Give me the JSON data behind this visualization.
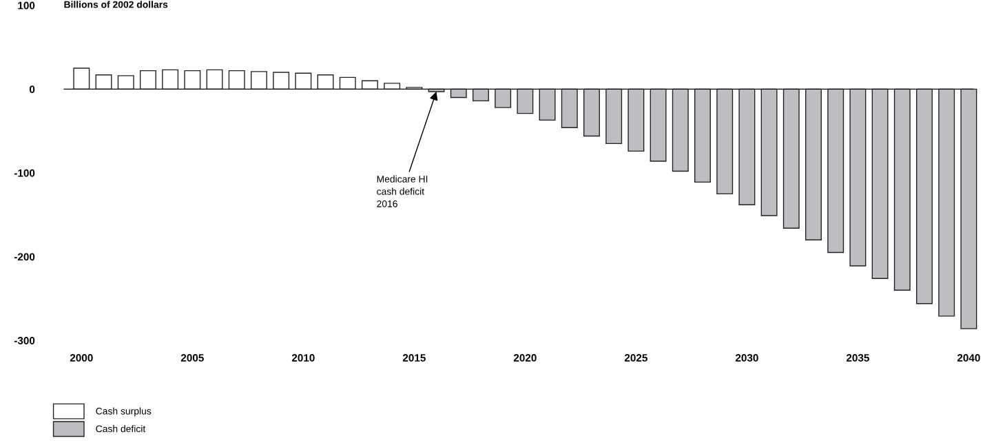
{
  "chart_data": {
    "type": "bar",
    "ylabel": "Billions of 2002 dollars",
    "x": [
      2000,
      2001,
      2002,
      2003,
      2004,
      2005,
      2006,
      2007,
      2008,
      2009,
      2010,
      2011,
      2012,
      2013,
      2014,
      2015,
      2016,
      2017,
      2018,
      2019,
      2020,
      2021,
      2022,
      2023,
      2024,
      2025,
      2026,
      2027,
      2028,
      2029,
      2030,
      2031,
      2032,
      2033,
      2034,
      2035,
      2036,
      2037,
      2038,
      2039,
      2040
    ],
    "series": [
      {
        "name": "Cash surplus",
        "color": "#ffffff",
        "values": [
          25,
          17,
          16,
          22,
          23,
          22,
          23,
          22,
          21,
          20,
          19,
          17,
          14,
          10,
          7,
          2,
          null,
          null,
          null,
          null,
          null,
          null,
          null,
          null,
          null,
          null,
          null,
          null,
          null,
          null,
          null,
          null,
          null,
          null,
          null,
          null,
          null,
          null,
          null,
          null,
          null
        ]
      },
      {
        "name": "Cash deficit",
        "color": "#bdbec2",
        "values": [
          null,
          null,
          null,
          null,
          null,
          null,
          null,
          null,
          null,
          null,
          null,
          null,
          null,
          null,
          null,
          null,
          -3,
          -10,
          -14,
          -22,
          -29,
          -37,
          -46,
          -56,
          -65,
          -74,
          -86,
          -98,
          -111,
          -125,
          -138,
          -151,
          -166,
          -180,
          -195,
          -211,
          -226,
          -240,
          -256,
          -271,
          -286
        ]
      }
    ],
    "xlim": [
      1999.2,
      2040.6
    ],
    "xticks": [
      2000,
      2005,
      2010,
      2015,
      2020,
      2025,
      2030,
      2035,
      2040
    ],
    "ylim": [
      -300,
      100
    ],
    "yticks": [
      -300,
      -200,
      -100,
      0,
      100
    ],
    "ref_lines": [
      {
        "axis": "y",
        "value": 0,
        "color": "#000000"
      }
    ],
    "annotations": [
      {
        "text": "Medicare HI\ncash deficit\n2016",
        "x": 2016,
        "y": -3
      }
    ],
    "legend": "bottom left",
    "grid": false
  }
}
